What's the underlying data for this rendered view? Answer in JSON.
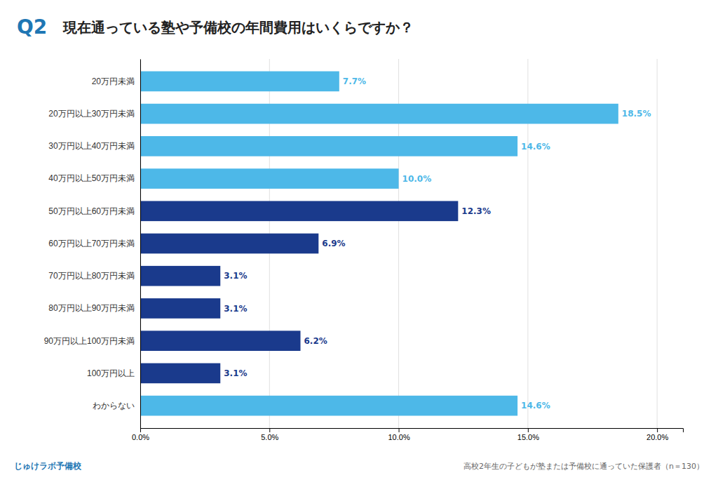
{
  "chart_data": {
    "type": "bar",
    "orientation": "horizontal",
    "title": "現在通っている塾や予備校の年間費用はいくらですか？",
    "annotations": [
      "Q2",
      "高校2年生の子どもが塾または予備校に通っていた保護者（n＝130）",
      "じゅけラボ予備校"
    ],
    "categories": [
      "20万円未満",
      "20万円以上30万円未満",
      "30万円以上40万円未満",
      "40万円以上50万円未満",
      "50万円以上60万円未満",
      "60万円以上70万円未満",
      "70万円以上80万円未満",
      "80万円以上90万円未満",
      "90万円以上100万円未満",
      "100万円以上",
      "わからない"
    ],
    "values": [
      7.7,
      18.5,
      14.6,
      10.0,
      12.3,
      6.9,
      3.1,
      3.1,
      6.2,
      3.1,
      14.6
    ],
    "value_labels": [
      "7.7%",
      "18.5%",
      "14.6%",
      "10.0%",
      "12.3%",
      "6.9%",
      "3.1%",
      "3.1%",
      "6.2%",
      "3.1%",
      "14.6%"
    ],
    "colors": [
      "#4db8e8",
      "#4db8e8",
      "#4db8e8",
      "#4db8e8",
      "#1a3a8c",
      "#1a3a8c",
      "#1a3a8c",
      "#1a3a8c",
      "#1a3a8c",
      "#1a3a8c",
      "#4db8e8"
    ],
    "data_labels": true,
    "xlim": [
      0,
      21
    ],
    "xticks": [
      {
        "value": 0,
        "label": "0.0%"
      },
      {
        "value": 5,
        "label": "5.0%"
      },
      {
        "value": 10,
        "label": "10.0%"
      },
      {
        "value": 15,
        "label": "15.0%"
      },
      {
        "value": 20,
        "label": "20.0%"
      }
    ],
    "grid": true
  }
}
